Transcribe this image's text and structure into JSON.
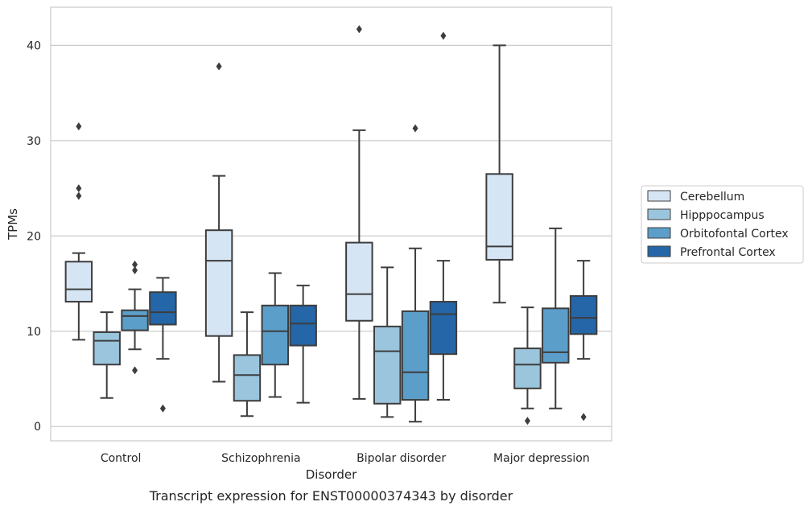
{
  "chart_data": {
    "type": "box",
    "title": "",
    "caption": "Transcript expression for ENST00000374343 by disorder",
    "xlabel": "Disorder",
    "ylabel": "TPMs",
    "ylim": [
      -1.5,
      44
    ],
    "yticks": [
      0,
      10,
      20,
      30,
      40
    ],
    "grid": "horizontal",
    "legend_position": "right",
    "categories": [
      "Control",
      "Schizophrenia",
      "Bipolar disorder",
      "Major depression"
    ],
    "series": [
      {
        "name": "Cerebellum",
        "color": "#d6e5f4",
        "boxes": [
          {
            "whisker_low": 9.1,
            "q1": 13.1,
            "median": 14.4,
            "q3": 17.3,
            "whisker_high": 18.2,
            "outliers": [
              24.2,
              25.0,
              31.5
            ]
          },
          {
            "whisker_low": 4.7,
            "q1": 9.5,
            "median": 17.4,
            "q3": 20.6,
            "whisker_high": 26.3,
            "outliers": [
              37.8
            ]
          },
          {
            "whisker_low": 2.9,
            "q1": 11.1,
            "median": 13.9,
            "q3": 19.3,
            "whisker_high": 31.1,
            "outliers": [
              41.7
            ]
          },
          {
            "whisker_low": 13.0,
            "q1": 17.5,
            "median": 18.9,
            "q3": 26.5,
            "whisker_high": 40.0,
            "outliers": []
          }
        ]
      },
      {
        "name": "Hipppocampus",
        "color": "#9ac5dd",
        "boxes": [
          {
            "whisker_low": 3.0,
            "q1": 6.5,
            "median": 9.0,
            "q3": 9.9,
            "whisker_high": 12.0,
            "outliers": []
          },
          {
            "whisker_low": 1.1,
            "q1": 2.7,
            "median": 5.4,
            "q3": 7.5,
            "whisker_high": 12.0,
            "outliers": []
          },
          {
            "whisker_low": 1.0,
            "q1": 2.4,
            "median": 7.9,
            "q3": 10.5,
            "whisker_high": 16.7,
            "outliers": []
          },
          {
            "whisker_low": 1.9,
            "q1": 4.0,
            "median": 6.5,
            "q3": 8.2,
            "whisker_high": 12.5,
            "outliers": [
              0.6
            ]
          }
        ]
      },
      {
        "name": "Orbitofontal Cortex",
        "color": "#5b9ec9",
        "boxes": [
          {
            "whisker_low": 8.1,
            "q1": 10.1,
            "median": 11.6,
            "q3": 12.2,
            "whisker_high": 14.4,
            "outliers": [
              5.9,
              16.4,
              17.0
            ]
          },
          {
            "whisker_low": 3.1,
            "q1": 6.5,
            "median": 10.0,
            "q3": 12.7,
            "whisker_high": 16.1,
            "outliers": []
          },
          {
            "whisker_low": 0.5,
            "q1": 2.8,
            "median": 5.7,
            "q3": 12.1,
            "whisker_high": 18.7,
            "outliers": [
              31.3
            ]
          },
          {
            "whisker_low": 1.9,
            "q1": 6.7,
            "median": 7.8,
            "q3": 12.4,
            "whisker_high": 20.8,
            "outliers": []
          }
        ]
      },
      {
        "name": "Prefrontal Cortex",
        "color": "#2566a8",
        "boxes": [
          {
            "whisker_low": 7.1,
            "q1": 10.7,
            "median": 12.0,
            "q3": 14.1,
            "whisker_high": 15.6,
            "outliers": [
              1.9
            ]
          },
          {
            "whisker_low": 2.5,
            "q1": 8.5,
            "median": 10.8,
            "q3": 12.7,
            "whisker_high": 14.8,
            "outliers": []
          },
          {
            "whisker_low": 2.8,
            "q1": 7.6,
            "median": 11.8,
            "q3": 13.1,
            "whisker_high": 17.4,
            "outliers": [
              41.0
            ]
          },
          {
            "whisker_low": 7.1,
            "q1": 9.7,
            "median": 11.4,
            "q3": 13.7,
            "whisker_high": 17.4,
            "outliers": [
              1.0
            ]
          }
        ]
      }
    ]
  }
}
